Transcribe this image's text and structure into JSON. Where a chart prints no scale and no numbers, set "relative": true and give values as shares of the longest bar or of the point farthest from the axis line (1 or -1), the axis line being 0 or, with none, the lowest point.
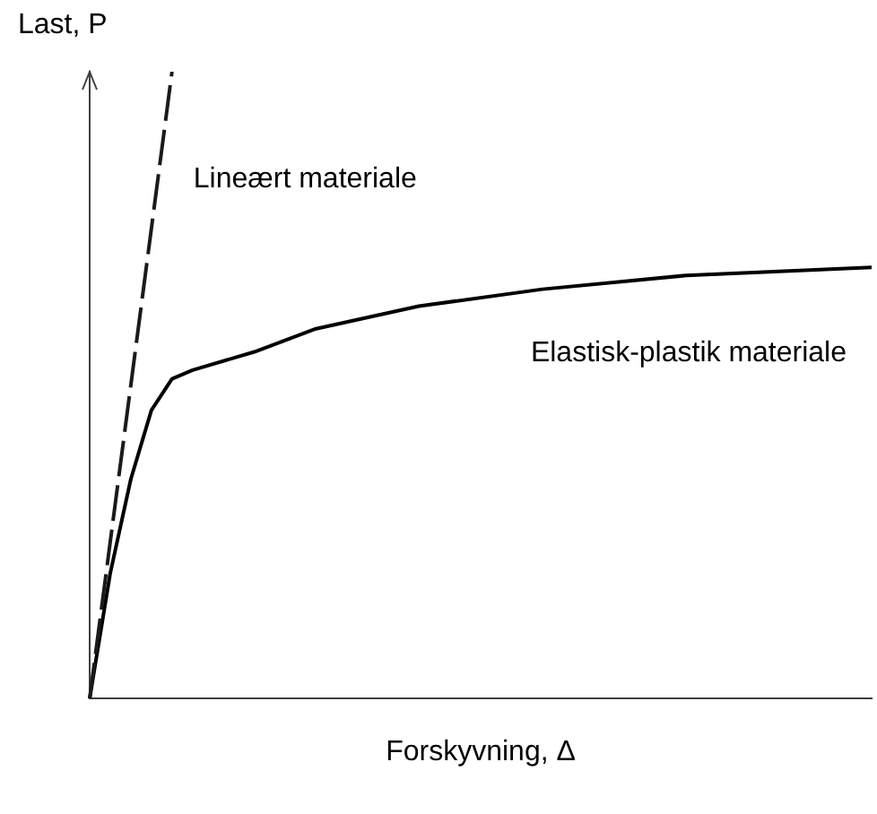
{
  "chart_data": {
    "type": "line",
    "xlabel": "Forskyvning, Δ",
    "ylabel": "Last, P",
    "relative": true,
    "grid": false,
    "legend": false,
    "marker": "none",
    "categories": [
      null,
      null,
      null,
      null,
      null,
      null,
      null,
      null,
      null,
      null,
      null,
      null,
      null,
      null,
      null,
      null,
      null,
      null,
      null,
      null,
      null,
      null,
      null,
      null,
      null,
      null,
      null,
      null,
      null,
      null,
      null,
      null,
      null,
      null,
      null,
      null,
      null,
      null,
      null
    ],
    "series": [
      {
        "name": "Lineært materiale",
        "color": "#1a1a1a",
        "line_style": "dashed",
        "values": [
          0,
          null,
          null,
          null,
          1,
          null,
          null,
          null,
          null,
          null,
          null,
          null,
          null,
          null,
          null,
          null,
          null,
          null,
          null,
          null,
          null,
          null,
          null,
          null,
          null,
          null,
          null,
          null,
          null,
          null,
          null,
          null,
          null,
          null,
          null,
          null,
          null,
          null,
          null
        ]
      },
      {
        "name": "Elastisk-plastik materiale",
        "color": "#000000",
        "line_style": "solid",
        "values": [
          0,
          0.2,
          0.35,
          0.46,
          0.51,
          0.524,
          null,
          null,
          0.553,
          null,
          null,
          0.59,
          null,
          null,
          null,
          null,
          0.626,
          null,
          null,
          null,
          null,
          null,
          0.653,
          null,
          null,
          null,
          null,
          null,
          null,
          0.675,
          null,
          null,
          null,
          null,
          null,
          null,
          null,
          null,
          0.688
        ]
      }
    ]
  }
}
